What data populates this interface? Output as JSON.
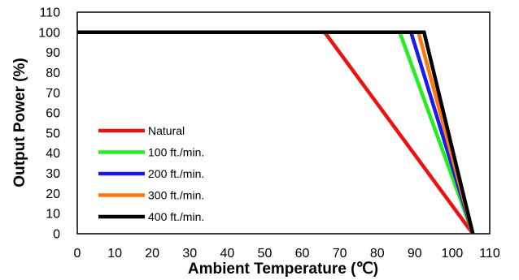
{
  "chart_data": {
    "type": "line",
    "title": "",
    "xlabel": "Ambient Temperature (℃)",
    "ylabel": "Output Power (%)",
    "xlim": [
      0,
      110
    ],
    "ylim": [
      0,
      110
    ],
    "x_ticks": [
      0,
      10,
      20,
      30,
      40,
      50,
      60,
      70,
      80,
      90,
      100,
      110
    ],
    "y_ticks": [
      0,
      10,
      20,
      30,
      40,
      50,
      60,
      70,
      80,
      90,
      100,
      110
    ],
    "grid": false,
    "legend_position": "lower-left",
    "series": [
      {
        "name": "Natural",
        "color": "#ee1111",
        "x": [
          0,
          66,
          105.5
        ],
        "y": [
          100,
          100,
          0
        ]
      },
      {
        "name": "100 ft./min.",
        "color": "#22ee22",
        "x": [
          0,
          86,
          105.5
        ],
        "y": [
          100,
          100,
          0
        ]
      },
      {
        "name": "200 ft./min.",
        "color": "#1a1aee",
        "x": [
          0,
          89,
          105.5
        ],
        "y": [
          100,
          100,
          0
        ]
      },
      {
        "name": "300 ft./min.",
        "color": "#ff7711",
        "x": [
          0,
          91,
          105.5
        ],
        "y": [
          100,
          100,
          0
        ]
      },
      {
        "name": "400 ft./min.",
        "color": "#000000",
        "x": [
          0,
          92.5,
          105.5
        ],
        "y": [
          100,
          100,
          0
        ]
      }
    ]
  }
}
